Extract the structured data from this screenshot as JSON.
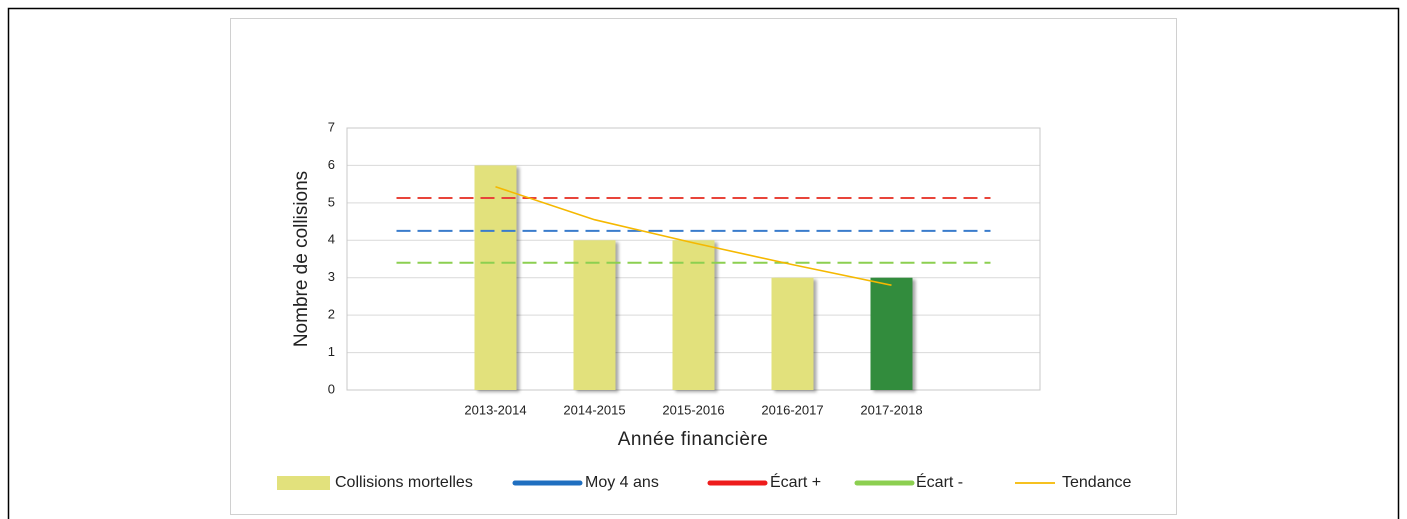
{
  "chart_data": {
    "type": "bar",
    "xlabel": "Année financière",
    "ylabel": "Nombre de collisions",
    "categories": [
      null,
      "2013-2014",
      "2014-2015",
      "2015-2016",
      "2016-2017",
      "2017-2018",
      null
    ],
    "series": [
      {
        "name": "Collisions mortelles",
        "type": "bar",
        "color": "#e2e17c",
        "colors": [
          null,
          "#e2e17c",
          "#e2e17c",
          "#e2e17c",
          "#e2e17c",
          "#338c3c",
          null
        ],
        "values": [
          null,
          6,
          4,
          4,
          3,
          3,
          null
        ]
      },
      {
        "name": "Moy 4 ans",
        "type": "line",
        "color": "#3a7ccc",
        "legend_color": "#1f6fc0",
        "dashed": true,
        "values": [
          4.25,
          4.25,
          4.25,
          4.25,
          4.25,
          4.25,
          4.25
        ]
      },
      {
        "name": "Écart +",
        "type": "line",
        "color": "#e8443a",
        "legend_color": "#ee1c1c",
        "dashed": true,
        "values": [
          5.13,
          5.13,
          5.13,
          5.13,
          5.13,
          5.13,
          5.13
        ]
      },
      {
        "name": "Écart -",
        "type": "line",
        "color": "#8ccf50",
        "legend_color": "#8ccf50",
        "dashed": true,
        "values": [
          3.4,
          3.4,
          3.4,
          3.4,
          3.4,
          3.4,
          3.4
        ]
      },
      {
        "name": "Tendance",
        "type": "line",
        "color": "#f5b800",
        "legend_color": "#f5b800",
        "dashed": false,
        "values": [
          null,
          5.43,
          4.55,
          3.93,
          3.35,
          2.8,
          null
        ]
      }
    ],
    "ylim": [
      0,
      7
    ],
    "yticks": [
      0,
      1,
      2,
      3,
      4,
      5,
      6,
      7
    ],
    "grid": true,
    "legend": "bottom"
  }
}
